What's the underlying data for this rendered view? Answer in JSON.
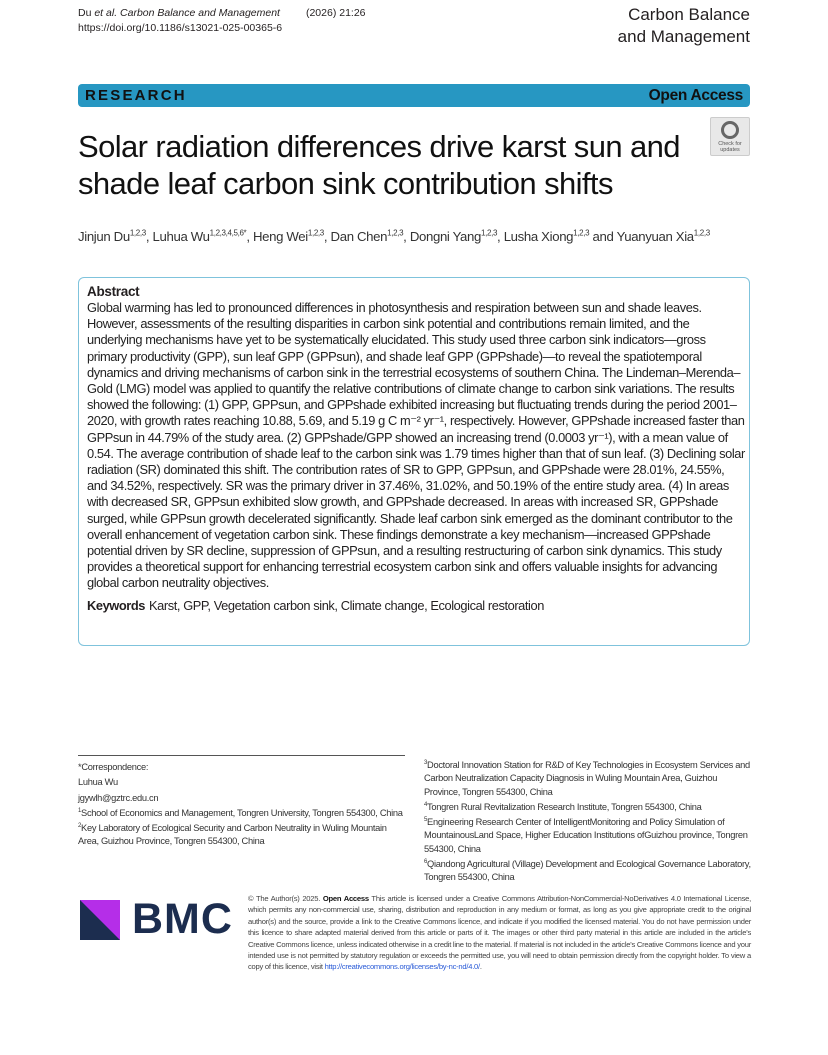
{
  "header": {
    "citation_authors": "Du ",
    "citation_etal": "et al.",
    "citation_journal": " Carbon Balance and Management",
    "citation_vol": "(2026) 21:26",
    "doi": "https://doi.org/10.1186/s13021-025-00365-6",
    "journal_line1": "Carbon Balance",
    "journal_line2": "and Management"
  },
  "banner": {
    "type": "RESEARCH",
    "access": "Open Access",
    "color": "#2797c2"
  },
  "check_updates": {
    "label1": "Check for",
    "label2": "updates"
  },
  "title": "Solar radiation differences drive karst sun and shade leaf carbon sink contribution shifts",
  "authors": [
    {
      "name": "Jinjun Du",
      "sup": "1,2,3",
      "sep": ", "
    },
    {
      "name": "Luhua Wu",
      "sup": "1,2,3,4,5,6*",
      "sep": ", "
    },
    {
      "name": "Heng Wei",
      "sup": "1,2,3",
      "sep": ", "
    },
    {
      "name": "Dan Chen",
      "sup": "1,2,3",
      "sep": ", "
    },
    {
      "name": "Dongni Yang",
      "sup": "1,2,3",
      "sep": ", "
    },
    {
      "name": "Lusha Xiong",
      "sup": "1,2,3",
      "sep": " and "
    },
    {
      "name": "Yuanyuan Xia",
      "sup": "1,2,3",
      "sep": ""
    }
  ],
  "abstract": {
    "heading": "Abstract",
    "text": "Global warming has led to pronounced differences in photosynthesis and respiration between sun and shade leaves. However, assessments of the resulting disparities in carbon sink potential and contributions remain limited, and the underlying mechanisms have yet to be systematically elucidated. This study used three carbon sink indicators—gross primary productivity (GPP), sun leaf GPP (GPPsun), and shade leaf GPP (GPPshade)—to reveal the spatiotemporal dynamics and driving mechanisms of carbon sink in the terrestrial ecosystems of southern China. The Lindeman–Merenda–Gold (LMG) model was applied to quantify the relative contributions of climate change to carbon sink variations. The results showed the following: (1) GPP, GPPsun, and GPPshade exhibited increasing but fluctuating trends during the period 2001–2020, with growth rates reaching 10.88, 5.69, and 5.19 g C m⁻² yr⁻¹, respectively. However, GPPshade increased faster than GPPsun in 44.79% of the study area. (2) GPPshade/GPP showed an increasing trend (0.0003 yr⁻¹), with a mean value of 0.54. The average contribution of shade leaf to the carbon sink was 1.79 times higher than that of sun leaf. (3) Declining solar radiation (SR) dominated this shift. The contribution rates of SR to GPP, GPPsun, and GPPshade were 28.01%, 24.55%, and 34.52%, respectively. SR was the primary driver in 37.46%, 31.02%, and 50.19% of the entire study area. (4) In areas with decreased SR, GPPsun exhibited slow growth, and GPPshade decreased. In areas with increased SR, GPPshade surged, while GPPsun growth decelerated significantly. Shade leaf carbon sink emerged as the dominant contributor to the overall enhancement of vegetation carbon sink. These findings demonstrate a key mechanism—increased GPPshade potential driven by SR decline, suppression of GPPsun, and a resulting restructuring of carbon sink dynamics. This study provides a theoretical support for enhancing terrestrial ecosystem carbon sink and offers valuable insights for advancing global carbon neutrality objectives.",
    "keywords_label": "Keywords",
    "keywords": "Karst, GPP, Vegetation carbon sink, Climate change, Ecological restoration"
  },
  "footnotes_left": [
    {
      "sup": "",
      "text": "*Correspondence:"
    },
    {
      "sup": "",
      "text": "Luhua Wu"
    },
    {
      "sup": "",
      "text": "jgywlh@gztrc.edu.cn"
    },
    {
      "sup": "1",
      "text": "School of Economics and Management, Tongren University, Tongren 554300, China"
    },
    {
      "sup": "2",
      "text": "Key Laboratory of Ecological Security and Carbon Neutrality in Wuling Mountain Area, Guizhou Province, Tongren 554300, China"
    }
  ],
  "footnotes_right": [
    {
      "sup": "3",
      "text": "Doctoral Innovation Station for R&D of Key Technologies in Ecosystem Services and Carbon Neutralization Capacity Diagnosis in Wuling Mountain Area, Guizhou Province, Tongren 554300, China"
    },
    {
      "sup": "4",
      "text": "Tongren Rural Revitalization Research Institute, Tongren 554300, China"
    },
    {
      "sup": "5",
      "text": "Engineering Research Center of IntelligentMonitoring and Policy Simulation of MountainousLand Space, Higher Education Institutions ofGuizhou province, Tongren 554300, China"
    },
    {
      "sup": "6",
      "text": "Qiandong Agricultural (Village) Development and Ecological Governance Laboratory, Tongren 554300, China"
    }
  ],
  "publisher": {
    "logo_text": "BMC",
    "logo_colors": {
      "navy": "#1c2d4f",
      "magenta": "#b52ee8"
    }
  },
  "license": {
    "copyright": "© The Author(s) 2025. ",
    "open_access": "Open Access",
    "text": "  This article is licensed under a Creative Commons Attribution-NonCommercial-NoDerivatives 4.0 International License, which permits any non-commercial use, sharing, distribution and reproduction in any medium or format, as long as you give appropriate credit to the original author(s) and the source, provide a link to the Creative Commons licence, and indicate if you modified the licensed material. You do not have permission under this licence to share adapted material derived from this article or parts of it. The images or other third party material in this article are included in the article's Creative Commons licence, unless indicated otherwise in a credit line to the material. If material is not included in the article's Creative Commons licence and your intended use is not permitted by statutory regulation or exceeds the permitted use, you will need to obtain permission directly from the copyright holder. To view a copy of this licence, visit ",
    "link": "http://creativecommons.org/licenses/by-nc-nd/4.0/",
    "end": "."
  }
}
